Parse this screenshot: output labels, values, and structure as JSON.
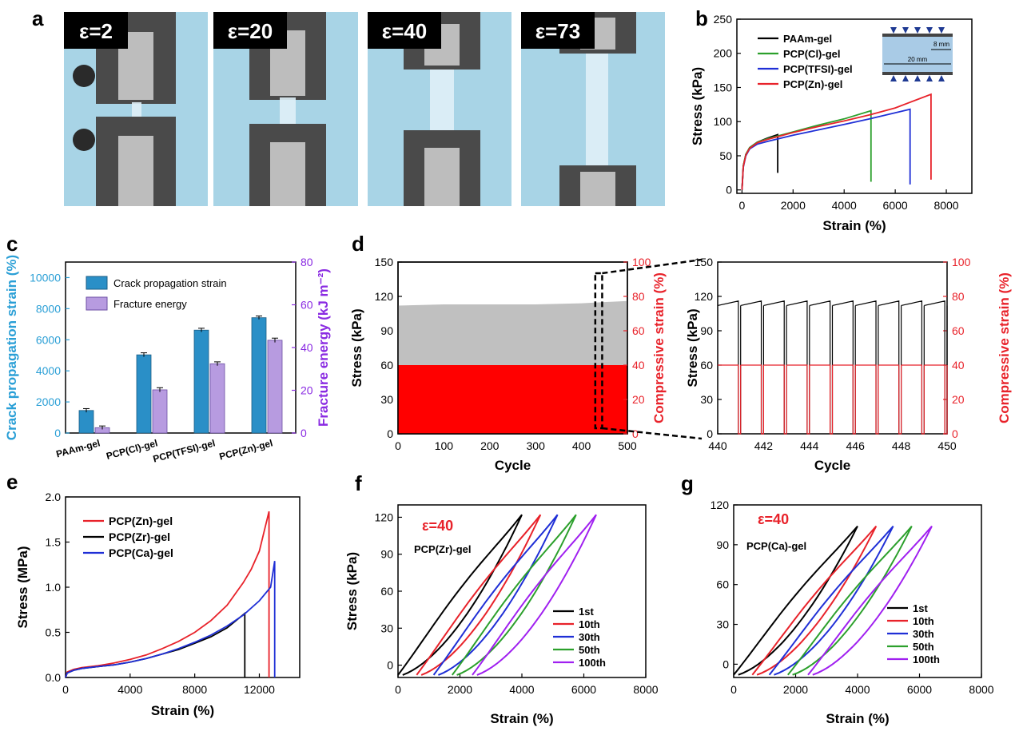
{
  "panels": {
    "a": {
      "letter": "a",
      "photos": [
        {
          "label": "ε=2"
        },
        {
          "label": "ε=20"
        },
        {
          "label": "ε=40"
        },
        {
          "label": "ε=73"
        }
      ]
    },
    "b_inset": {
      "dim_small": "8 mm",
      "dim_large": "20 mm"
    },
    "f_extra": {
      "strain_label": "ε=40",
      "sample": "PCP(Zr)-gel"
    },
    "g_extra": {
      "strain_label": "ε=40",
      "sample": "PCP(Ca)-gel"
    }
  },
  "colors": {
    "black": "#000000",
    "green": "#2ca02c",
    "blue": "#1f2fd6",
    "red": "#e8222a",
    "purple": "#a020f0",
    "cyan_axis": "#2a9fd6",
    "purple_axis": "#8a2be2",
    "bar_blue": "#2a8fc7",
    "bar_purple": "#b79be0",
    "photo_bg": "#a8d4e6"
  },
  "chart_data": [
    {
      "id": "b",
      "letter": "b",
      "type": "line",
      "xlabel": "Strain (%)",
      "ylabel": "Stress (kPa)",
      "xlim": [
        -200,
        9000
      ],
      "ylim": [
        -5,
        250
      ],
      "xticks": [
        0,
        2000,
        4000,
        6000,
        8000
      ],
      "yticks": [
        0,
        50,
        100,
        150,
        200,
        250
      ],
      "legend_position": "top-left",
      "series": [
        {
          "name": "PAAm-gel",
          "color": "#000000",
          "x": [
            0,
            50,
            150,
            300,
            600,
            1000,
            1400,
            1400
          ],
          "y": [
            0,
            35,
            52,
            62,
            70,
            76,
            81,
            25
          ]
        },
        {
          "name": "PCP(Cl)-gel",
          "color": "#2ca02c",
          "x": [
            0,
            50,
            150,
            300,
            600,
            1000,
            2000,
            3000,
            4000,
            5050,
            5050
          ],
          "y": [
            0,
            35,
            52,
            62,
            70,
            75,
            85,
            95,
            104,
            116,
            12
          ]
        },
        {
          "name": "PCP(TFSI)-gel",
          "color": "#1f2fd6",
          "x": [
            0,
            50,
            150,
            300,
            600,
            1000,
            2000,
            3000,
            4000,
            5000,
            6580,
            6580
          ],
          "y": [
            0,
            33,
            50,
            60,
            67,
            71,
            80,
            88,
            96,
            104,
            118,
            8
          ]
        },
        {
          "name": "PCP(Zn)-gel",
          "color": "#e8222a",
          "x": [
            0,
            50,
            150,
            300,
            600,
            1000,
            2000,
            3000,
            4000,
            5000,
            6000,
            7400,
            7400
          ],
          "y": [
            0,
            34,
            51,
            61,
            69,
            74,
            84,
            93,
            101,
            110,
            120,
            140,
            15
          ]
        }
      ]
    },
    {
      "id": "c",
      "letter": "c",
      "type": "bar",
      "categories": [
        "PAAm-gel",
        "PCP(Cl)-gel",
        "PCP(TFSI)-gel",
        "PCP(Zn)-gel"
      ],
      "ylabel": "Crack propagation strain (%)",
      "y2label": "Fracture energy (kJ m⁻²)",
      "ylim": [
        0,
        11000
      ],
      "y2lim": [
        0,
        80
      ],
      "yticks": [
        0,
        2000,
        4000,
        6000,
        8000,
        10000
      ],
      "y2ticks": [
        0,
        20,
        40,
        60,
        80
      ],
      "legend_position": "top-left",
      "series": [
        {
          "name": "Crack propagation strain",
          "axis": "left",
          "values": [
            1450,
            5030,
            6620,
            7420
          ],
          "errors": [
            120,
            130,
            120,
            110
          ]
        },
        {
          "name": "Fracture energy",
          "axis": "right",
          "values": [
            2.5,
            20.2,
            32.4,
            43.4
          ],
          "errors": [
            0.8,
            1.0,
            0.9,
            1.0
          ]
        }
      ]
    },
    {
      "id": "d1",
      "letter": "d",
      "type": "area",
      "xlabel": "Cycle",
      "ylabel": "Stress (kPa)",
      "y2label": "Compressive strain (%)",
      "xlim": [
        0,
        500
      ],
      "ylim": [
        0,
        150
      ],
      "y2lim": [
        0,
        100
      ],
      "xticks": [
        0,
        100,
        200,
        300,
        400,
        500
      ],
      "yticks": [
        0,
        30,
        60,
        90,
        120,
        150
      ],
      "y2ticks": [
        0,
        20,
        40,
        60,
        80,
        100
      ],
      "series": [
        {
          "name": "Stress",
          "axis": "left",
          "color": "#c0c0c0",
          "x": [
            0,
            100,
            200,
            300,
            400,
            500
          ],
          "y": [
            112,
            113,
            113,
            113,
            114,
            116
          ]
        },
        {
          "name": "Compressive strain",
          "axis": "right",
          "color": "#ff0000",
          "x": [
            0,
            500
          ],
          "y": [
            40,
            40
          ]
        }
      ],
      "highlight": {
        "x_range": [
          430,
          445
        ]
      }
    },
    {
      "id": "d2",
      "letter": "",
      "type": "line",
      "xlabel": "Cycle",
      "ylabel": "Stress (kPa)",
      "y2label": "Compressive strain (%)",
      "xlim": [
        440,
        450
      ],
      "ylim": [
        0,
        150
      ],
      "y2lim": [
        0,
        100
      ],
      "xticks": [
        440,
        442,
        444,
        446,
        448,
        450
      ],
      "yticks": [
        0,
        30,
        60,
        90,
        120,
        150
      ],
      "y2ticks": [
        0,
        20,
        40,
        60,
        80,
        100
      ],
      "cycles": {
        "start": 440,
        "count": 10,
        "period": 1,
        "dwell": 0.9,
        "stress_low": 112,
        "stress_high": 116,
        "strain": 40
      }
    },
    {
      "id": "e",
      "letter": "e",
      "type": "line",
      "xlabel": "Strain (%)",
      "ylabel": "Stress (MPa)",
      "xlim": [
        0,
        14500
      ],
      "ylim": [
        0,
        2.0
      ],
      "xticks": [
        0,
        4000,
        8000,
        12000
      ],
      "yticks": [
        0.0,
        0.5,
        1.0,
        1.5,
        2.0
      ],
      "legend_position": "top-left",
      "series": [
        {
          "name": "PCP(Zn)-gel",
          "color": "#e8222a",
          "x": [
            0,
            100,
            500,
            1000,
            2000,
            3000,
            4000,
            5000,
            6000,
            7000,
            8000,
            9000,
            10000,
            11000,
            11500,
            12000,
            12600,
            12600
          ],
          "y": [
            0,
            0.06,
            0.09,
            0.11,
            0.13,
            0.16,
            0.2,
            0.25,
            0.32,
            0.4,
            0.5,
            0.63,
            0.8,
            1.05,
            1.2,
            1.4,
            1.84,
            0
          ]
        },
        {
          "name": "PCP(Zr)-gel",
          "color": "#000000",
          "x": [
            0,
            100,
            500,
            1000,
            2000,
            3000,
            4000,
            5000,
            6000,
            7000,
            8000,
            9000,
            10000,
            11100,
            11100
          ],
          "y": [
            0,
            0.05,
            0.08,
            0.1,
            0.12,
            0.14,
            0.17,
            0.21,
            0.26,
            0.31,
            0.38,
            0.45,
            0.55,
            0.71,
            0
          ]
        },
        {
          "name": "PCP(Ca)-gel",
          "color": "#1f2fd6",
          "x": [
            0,
            100,
            500,
            1000,
            2000,
            3000,
            4000,
            5000,
            6000,
            7000,
            8000,
            9000,
            10000,
            11000,
            12000,
            12700,
            12950,
            12950
          ],
          "y": [
            0,
            0.05,
            0.08,
            0.1,
            0.12,
            0.14,
            0.17,
            0.21,
            0.26,
            0.32,
            0.39,
            0.47,
            0.57,
            0.69,
            0.85,
            1.0,
            1.29,
            0
          ]
        }
      ]
    },
    {
      "id": "f",
      "letter": "f",
      "type": "line",
      "xlabel": "Strain (%)",
      "ylabel": "Stress (kPa)",
      "xlim": [
        0,
        8000
      ],
      "ylim": [
        -10,
        130
      ],
      "xticks": [
        0,
        2000,
        4000,
        6000,
        8000
      ],
      "yticks": [
        0,
        30,
        60,
        90,
        120
      ],
      "legend_position": "bottom-right",
      "loop": {
        "width": 4000,
        "peak": 122,
        "minimum": -8
      },
      "series": [
        {
          "name": "1st",
          "color": "#000000",
          "offset": 0
        },
        {
          "name": "10th",
          "color": "#e8222a",
          "offset": 600
        },
        {
          "name": "30th",
          "color": "#1f2fd6",
          "offset": 1150
        },
        {
          "name": "50th",
          "color": "#2ca02c",
          "offset": 1750
        },
        {
          "name": "100th",
          "color": "#a020f0",
          "offset": 2400
        }
      ]
    },
    {
      "id": "g",
      "letter": "g",
      "type": "line",
      "xlabel": "Strain (%)",
      "ylabel": "",
      "xlim": [
        0,
        8000
      ],
      "ylim": [
        -10,
        120
      ],
      "xticks": [
        0,
        2000,
        4000,
        6000,
        8000
      ],
      "yticks": [
        0,
        30,
        60,
        90,
        120
      ],
      "legend_position": "bottom-right",
      "loop": {
        "width": 4000,
        "peak": 104,
        "minimum": -8
      },
      "series": [
        {
          "name": "1st",
          "color": "#000000",
          "offset": 0
        },
        {
          "name": "10th",
          "color": "#e8222a",
          "offset": 600
        },
        {
          "name": "30th",
          "color": "#1f2fd6",
          "offset": 1150
        },
        {
          "name": "50th",
          "color": "#2ca02c",
          "offset": 1750
        },
        {
          "name": "100th",
          "color": "#a020f0",
          "offset": 2400
        }
      ]
    }
  ]
}
